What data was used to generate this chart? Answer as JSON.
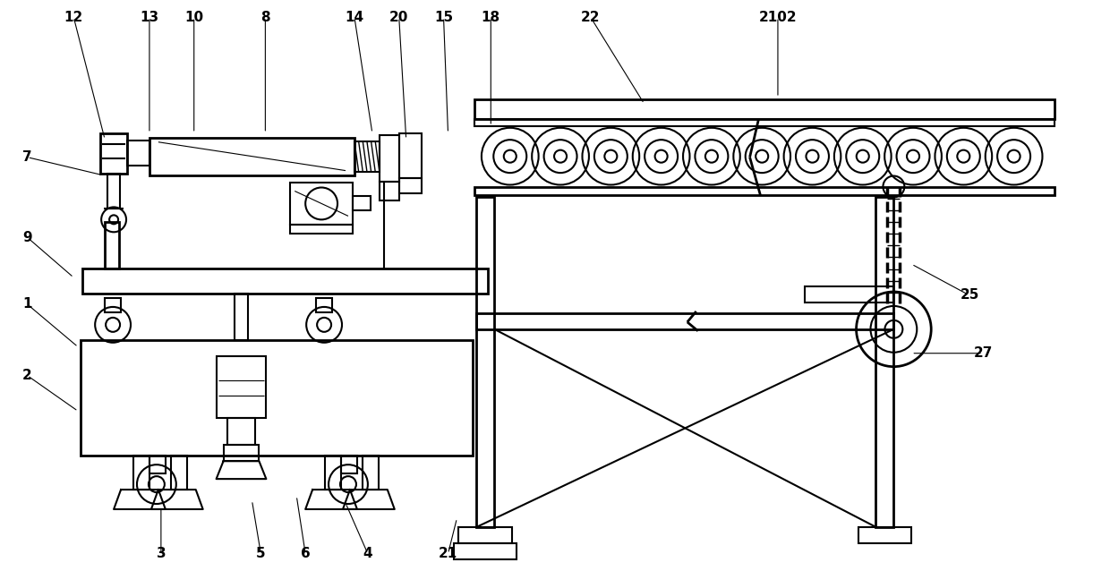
{
  "bg_color": "#ffffff",
  "line_color": "#000000",
  "fig_width": 12.4,
  "fig_height": 6.57,
  "annot_lines": [
    [
      "12",
      80,
      18,
      115,
      155
    ],
    [
      "13",
      165,
      18,
      165,
      148
    ],
    [
      "10",
      215,
      18,
      215,
      148
    ],
    [
      "8",
      295,
      18,
      295,
      148
    ],
    [
      "14",
      395,
      18,
      415,
      148
    ],
    [
      "20",
      445,
      18,
      453,
      155
    ],
    [
      "15",
      495,
      18,
      500,
      148
    ],
    [
      "18",
      548,
      18,
      548,
      140
    ],
    [
      "22",
      660,
      18,
      720,
      115
    ],
    [
      "2102",
      870,
      18,
      870,
      108
    ],
    [
      "7",
      28,
      175,
      112,
      195
    ],
    [
      "9",
      28,
      265,
      80,
      310
    ],
    [
      "1",
      28,
      340,
      85,
      388
    ],
    [
      "2",
      28,
      420,
      85,
      460
    ],
    [
      "3",
      178,
      620,
      178,
      568
    ],
    [
      "5",
      290,
      620,
      280,
      560
    ],
    [
      "6",
      340,
      620,
      330,
      555
    ],
    [
      "4",
      410,
      620,
      385,
      563
    ],
    [
      "21",
      500,
      620,
      510,
      580
    ],
    [
      "25",
      1085,
      330,
      1020,
      295
    ],
    [
      "27",
      1100,
      395,
      1020,
      395
    ]
  ]
}
